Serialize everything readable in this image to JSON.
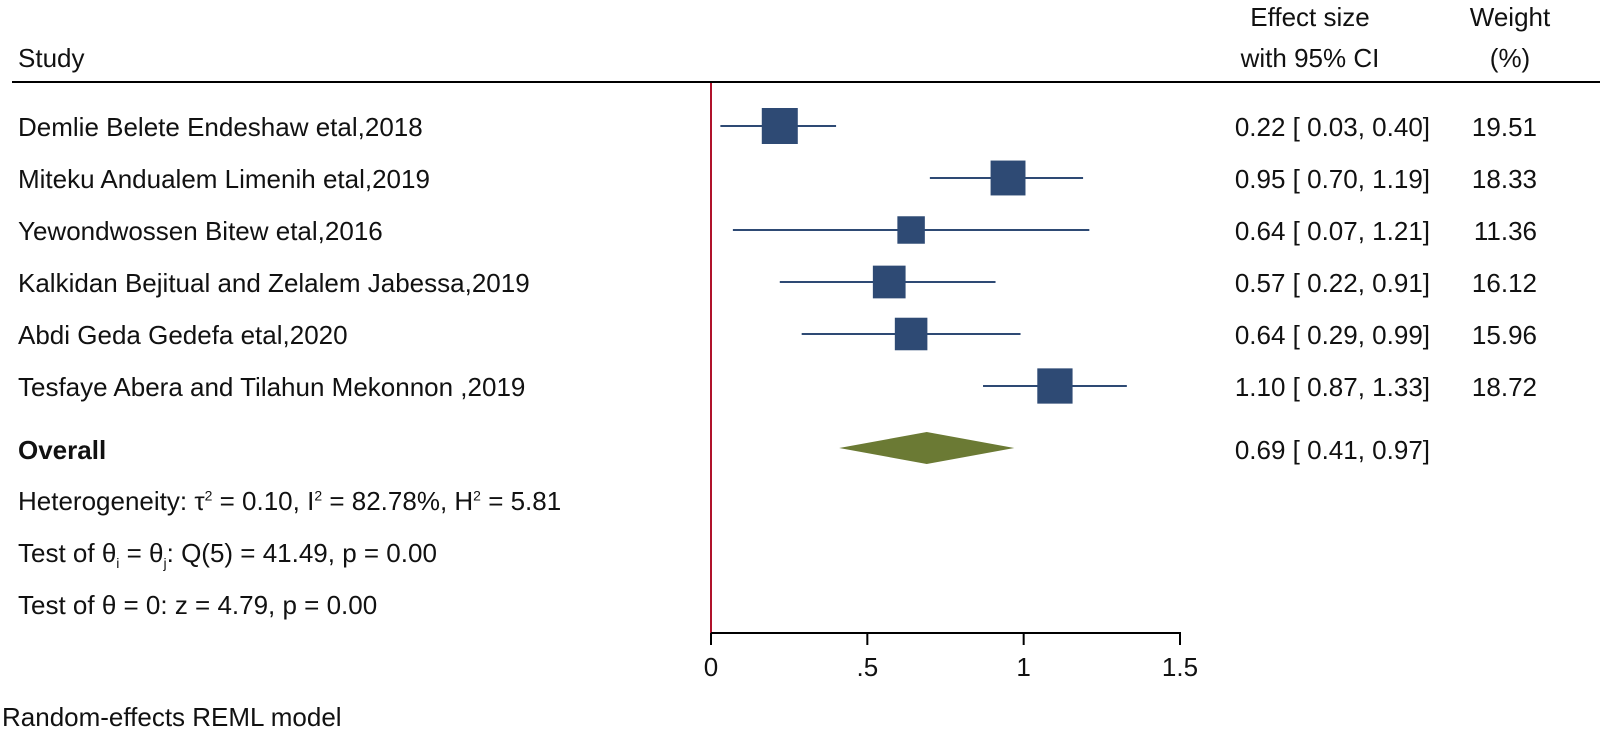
{
  "header": {
    "study": "Study",
    "effect_line1": "Effect size",
    "effect_line2": "with 95% CI",
    "weight_line1": "Weight",
    "weight_line2": "(%)"
  },
  "chart_data": {
    "type": "forest",
    "xlim": [
      0,
      1.5
    ],
    "null_line": 0,
    "xticks": [
      0,
      0.5,
      1,
      1.5
    ],
    "xtick_labels": [
      "0",
      ".5",
      "1",
      "1.5"
    ],
    "studies": [
      {
        "name": "Demlie Belete Endeshaw etal,2018",
        "effect": 0.22,
        "lower": 0.03,
        "upper": 0.4,
        "ci_text": "0.22 [ 0.03,  0.40]",
        "weight": 19.51,
        "weight_text": "19.51"
      },
      {
        "name": "Miteku Andualem Limenih etal,2019",
        "effect": 0.95,
        "lower": 0.7,
        "upper": 1.19,
        "ci_text": "0.95 [ 0.70,  1.19]",
        "weight": 18.33,
        "weight_text": "18.33"
      },
      {
        "name": "Yewondwossen Bitew etal,2016",
        "effect": 0.64,
        "lower": 0.07,
        "upper": 1.21,
        "ci_text": "0.64 [ 0.07,  1.21]",
        "weight": 11.36,
        "weight_text": "11.36"
      },
      {
        "name": "Kalkidan Bejitual and  Zelalem Jabessa,2019",
        "effect": 0.57,
        "lower": 0.22,
        "upper": 0.91,
        "ci_text": "0.57 [ 0.22,  0.91]",
        "weight": 16.12,
        "weight_text": "16.12"
      },
      {
        "name": "Abdi Geda Gedefa etal,2020",
        "effect": 0.64,
        "lower": 0.29,
        "upper": 0.99,
        "ci_text": "0.64 [ 0.29,  0.99]",
        "weight": 15.96,
        "weight_text": "15.96"
      },
      {
        "name": "Tesfaye Abera  and Tilahun Mekonnon ,2019",
        "effect": 1.1,
        "lower": 0.87,
        "upper": 1.33,
        "ci_text": "1.10 [ 0.87,  1.33]",
        "weight": 18.72,
        "weight_text": "18.72"
      }
    ],
    "overall": {
      "label": "Overall",
      "effect": 0.69,
      "lower": 0.41,
      "upper": 0.97,
      "ci_text": "0.69 [ 0.41,  0.97]"
    },
    "heterogeneity": {
      "prefix": "Heterogeneity: ",
      "tau_sym": "τ",
      "tau_val": " = 0.10, ",
      "i_sym": "I",
      "i_val": " = 82.78%, ",
      "h_sym": "H",
      "h_val": " = 5.81",
      "sup": "2"
    },
    "test_ij": {
      "prefix": "Test of θ",
      "sub_i": "i",
      "mid": " = θ",
      "sub_j": "j",
      "rest": ": Q(5) = 41.49, p = 0.00"
    },
    "test_zero": "Test of θ = 0: z = 4.79, p = 0.00",
    "model_note": "Random-effects REML model",
    "colors": {
      "marker": "#2e4a74",
      "diamond": "#6b7a34",
      "null_line": "#b0122b",
      "axis": "#000000"
    }
  }
}
